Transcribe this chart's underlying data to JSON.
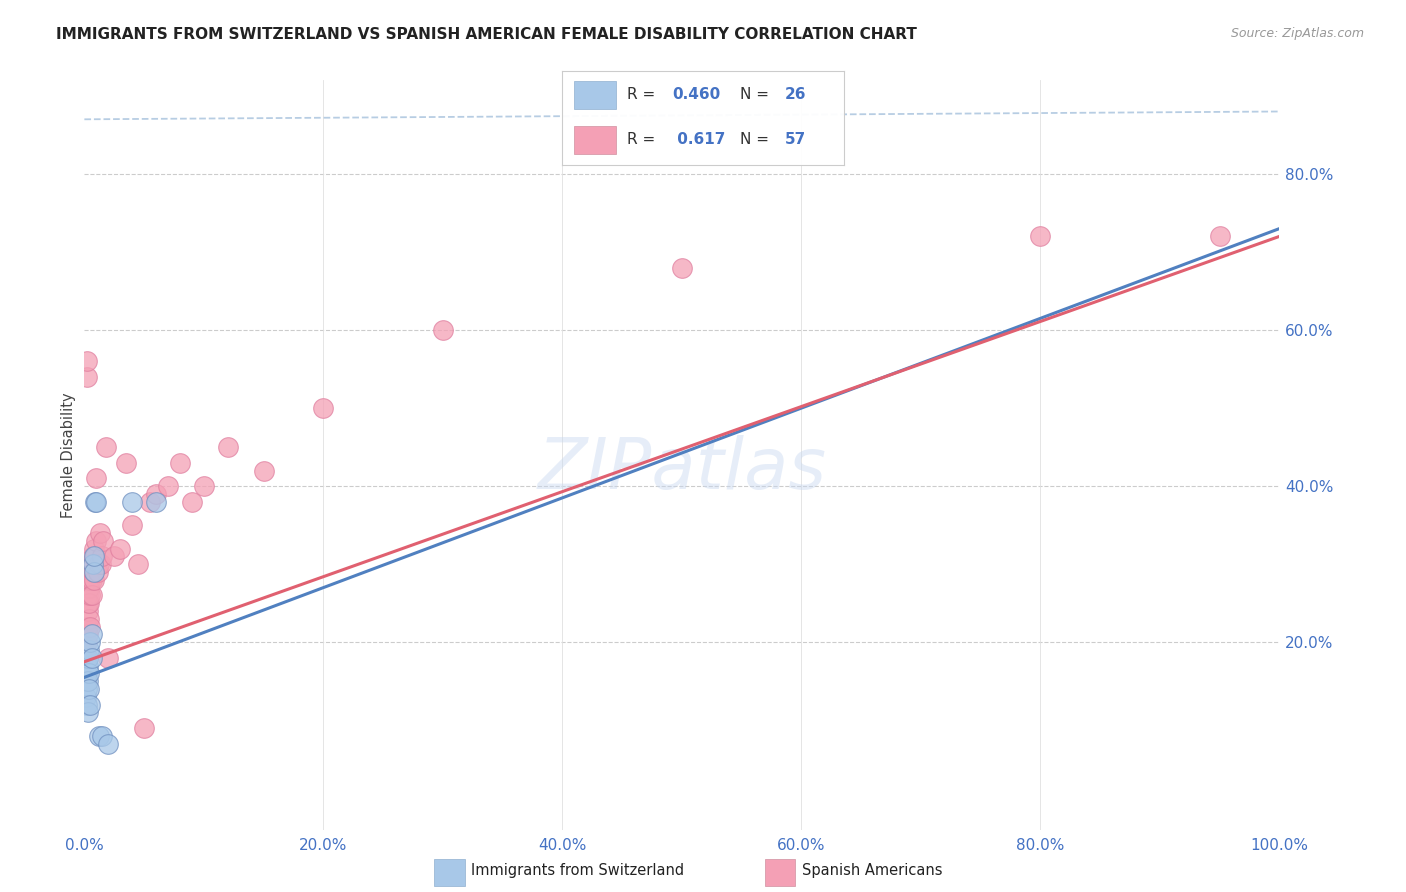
{
  "title": "IMMIGRANTS FROM SWITZERLAND VS SPANISH AMERICAN FEMALE DISABILITY CORRELATION CHART",
  "source": "Source: ZipAtlas.com",
  "ylabel": "Female Disability",
  "watermark": "ZIPatlas",
  "color_blue": "#A8C8E8",
  "color_pink": "#F4A0B5",
  "color_blue_line": "#5080C0",
  "color_pink_line": "#E06070",
  "color_blue_text": "#4472C4",
  "color_dashed": "#B0C8E0",
  "xlim": [
    0.0,
    1.0
  ],
  "ylim_low": -0.04,
  "ylim_high": 0.92,
  "xtick_labels": [
    "0.0%",
    "20.0%",
    "40.0%",
    "60.0%",
    "80.0%",
    "100.0%"
  ],
  "xtick_values": [
    0.0,
    0.2,
    0.4,
    0.6,
    0.8,
    1.0
  ],
  "ytick_labels": [
    "20.0%",
    "40.0%",
    "60.0%",
    "80.0%"
  ],
  "ytick_values": [
    0.2,
    0.4,
    0.6,
    0.8
  ],
  "swiss_x": [
    0.001,
    0.001,
    0.002,
    0.002,
    0.002,
    0.003,
    0.003,
    0.003,
    0.003,
    0.004,
    0.004,
    0.004,
    0.005,
    0.005,
    0.006,
    0.006,
    0.007,
    0.008,
    0.008,
    0.009,
    0.01,
    0.012,
    0.015,
    0.02,
    0.04,
    0.06
  ],
  "swiss_y": [
    0.13,
    0.15,
    0.14,
    0.16,
    0.12,
    0.17,
    0.18,
    0.15,
    0.11,
    0.16,
    0.14,
    0.19,
    0.2,
    0.12,
    0.21,
    0.18,
    0.3,
    0.29,
    0.31,
    0.38,
    0.38,
    0.08,
    0.08,
    0.07,
    0.38,
    0.38
  ],
  "spanish_x": [
    0.001,
    0.001,
    0.001,
    0.002,
    0.002,
    0.002,
    0.002,
    0.003,
    0.003,
    0.003,
    0.003,
    0.003,
    0.004,
    0.004,
    0.004,
    0.004,
    0.005,
    0.005,
    0.005,
    0.005,
    0.006,
    0.006,
    0.006,
    0.007,
    0.007,
    0.008,
    0.008,
    0.009,
    0.01,
    0.01,
    0.011,
    0.012,
    0.013,
    0.014,
    0.015,
    0.016,
    0.018,
    0.02,
    0.025,
    0.03,
    0.035,
    0.04,
    0.045,
    0.05,
    0.055,
    0.06,
    0.07,
    0.08,
    0.09,
    0.1,
    0.12,
    0.15,
    0.2,
    0.3,
    0.5,
    0.8,
    0.95
  ],
  "spanish_y": [
    0.15,
    0.18,
    0.2,
    0.54,
    0.56,
    0.2,
    0.22,
    0.22,
    0.24,
    0.25,
    0.26,
    0.21,
    0.27,
    0.28,
    0.23,
    0.25,
    0.3,
    0.26,
    0.28,
    0.22,
    0.28,
    0.3,
    0.26,
    0.29,
    0.31,
    0.32,
    0.28,
    0.31,
    0.33,
    0.41,
    0.29,
    0.3,
    0.34,
    0.3,
    0.31,
    0.33,
    0.45,
    0.18,
    0.31,
    0.32,
    0.43,
    0.35,
    0.3,
    0.09,
    0.38,
    0.39,
    0.4,
    0.43,
    0.38,
    0.4,
    0.45,
    0.42,
    0.5,
    0.6,
    0.68,
    0.72,
    0.72
  ],
  "swiss_line_x0": 0.0,
  "swiss_line_y0": 0.155,
  "swiss_line_x1": 1.0,
  "swiss_line_y1": 0.73,
  "spanish_line_x0": 0.0,
  "spanish_line_y0": 0.175,
  "spanish_line_x1": 1.0,
  "spanish_line_y1": 0.72,
  "dash_line_x0": 0.0,
  "dash_line_y0": 0.87,
  "dash_line_x1": 1.0,
  "dash_line_y1": 0.88
}
